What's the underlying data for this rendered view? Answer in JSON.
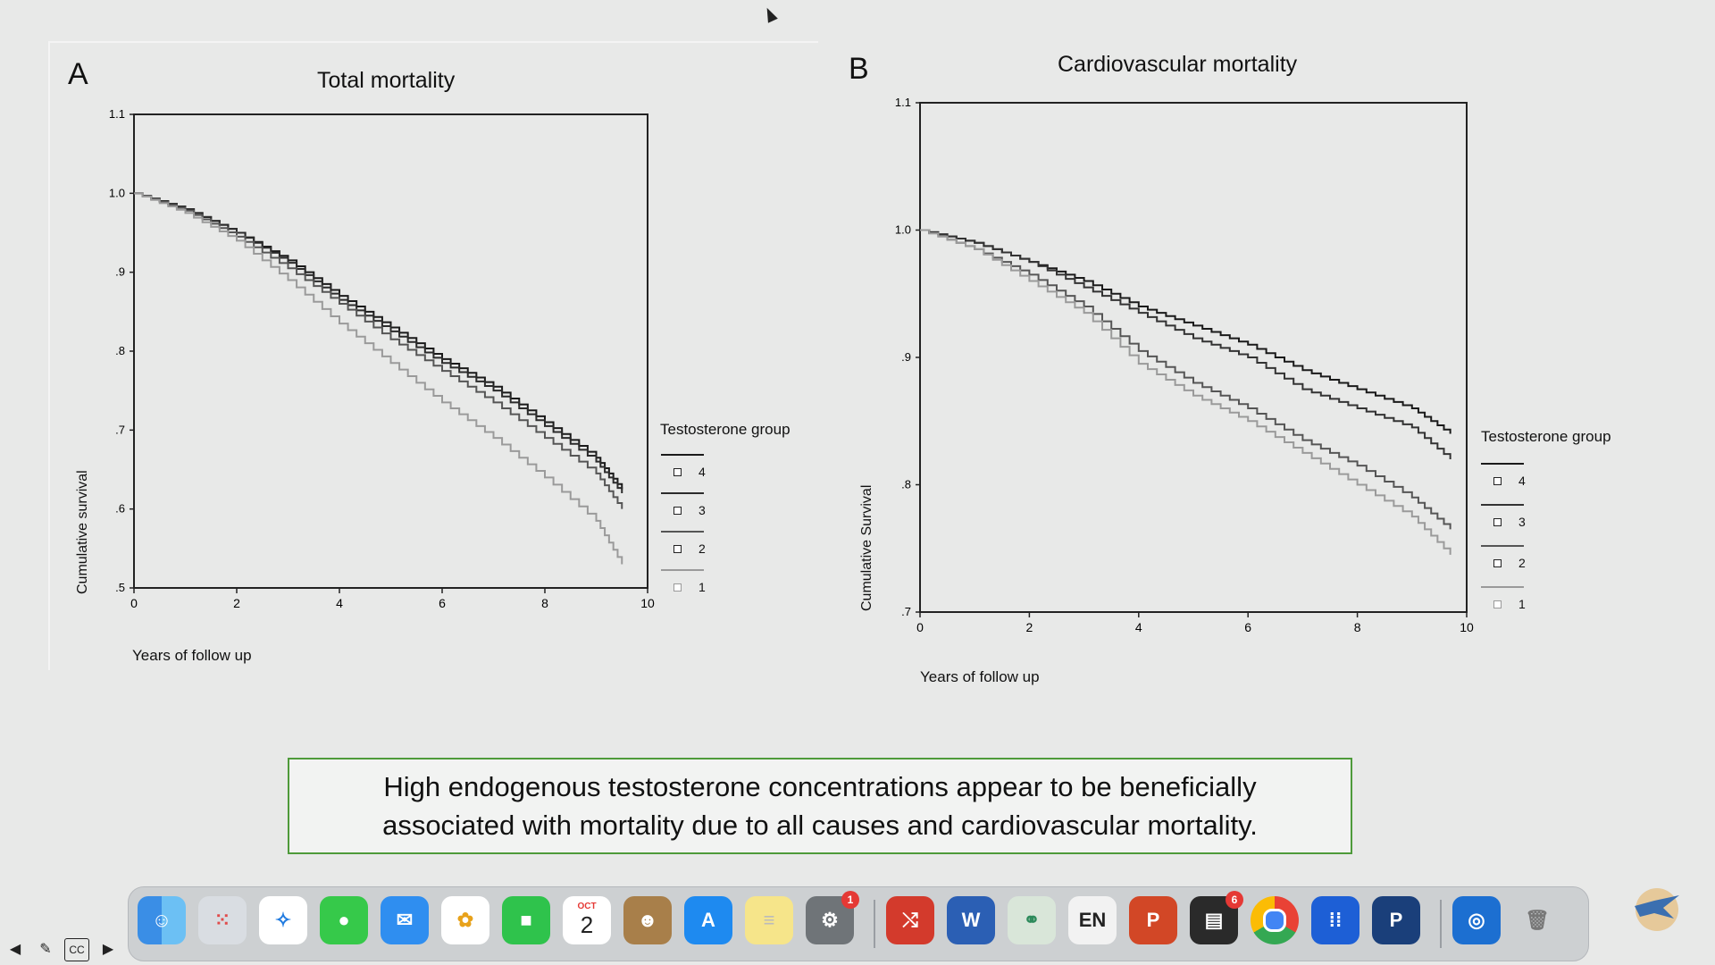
{
  "caption": {
    "line1": "High endogenous testosterone concentrations appear to be beneficially",
    "line2": "associated with mortality due to all causes and cardiovascular mortality."
  },
  "chart_data": [
    {
      "type": "line",
      "panel": "A",
      "title": "Total mortality",
      "xlabel": "Years of follow up",
      "ylabel": "Cumulative survival",
      "xlim": [
        0,
        10
      ],
      "ylim": [
        0.5,
        1.1
      ],
      "x_ticks": [
        "0",
        "2",
        "4",
        "6",
        "8",
        "10"
      ],
      "y_ticks": [
        "1.1",
        "1.0",
        ".9",
        ".8",
        ".7",
        ".6",
        ".5"
      ],
      "legend_title": "Testosterone group",
      "series": [
        {
          "name": "4",
          "color": "#1a1a1a",
          "x": [
            0,
            1,
            2,
            3,
            4,
            5,
            6,
            7,
            8,
            9,
            9.5
          ],
          "values": [
            1.0,
            0.98,
            0.95,
            0.915,
            0.87,
            0.83,
            0.79,
            0.755,
            0.71,
            0.665,
            0.625
          ]
        },
        {
          "name": "3",
          "color": "#2b2b2b",
          "x": [
            0,
            1,
            2,
            3,
            4,
            5,
            6,
            7,
            8,
            9,
            9.5
          ],
          "values": [
            1.0,
            0.98,
            0.95,
            0.912,
            0.865,
            0.825,
            0.785,
            0.75,
            0.705,
            0.66,
            0.62
          ]
        },
        {
          "name": "2",
          "color": "#555555",
          "x": [
            0,
            1,
            2,
            3,
            4,
            5,
            6,
            7,
            8,
            9,
            9.5
          ],
          "values": [
            1.0,
            0.978,
            0.945,
            0.905,
            0.86,
            0.815,
            0.775,
            0.735,
            0.69,
            0.645,
            0.6
          ]
        },
        {
          "name": "1",
          "color": "#9a9a9a",
          "x": [
            0,
            1,
            2,
            3,
            4,
            5,
            6,
            7,
            8,
            9,
            9.5
          ],
          "values": [
            1.0,
            0.975,
            0.94,
            0.89,
            0.835,
            0.785,
            0.735,
            0.69,
            0.64,
            0.585,
            0.53
          ]
        }
      ]
    },
    {
      "type": "line",
      "panel": "B",
      "title": "Cardiovascular mortality",
      "xlabel": "Years of follow up",
      "ylabel": "Cumulative Survival",
      "xlim": [
        0,
        10
      ],
      "ylim": [
        0.7,
        1.1
      ],
      "x_ticks": [
        "0",
        "2",
        "4",
        "6",
        "8",
        "10"
      ],
      "y_ticks": [
        "1.1",
        "1.0",
        ".9",
        ".8",
        ".7"
      ],
      "legend_title": "Testosterone group",
      "series": [
        {
          "name": "4",
          "color": "#1a1a1a",
          "x": [
            0,
            1,
            2,
            3,
            4,
            5,
            6,
            7,
            8,
            9,
            9.7
          ],
          "values": [
            1.0,
            0.99,
            0.975,
            0.96,
            0.94,
            0.925,
            0.91,
            0.89,
            0.875,
            0.86,
            0.84
          ]
        },
        {
          "name": "3",
          "color": "#333333",
          "x": [
            0,
            1,
            2,
            3,
            4,
            5,
            6,
            7,
            8,
            9,
            9.7
          ],
          "values": [
            1.0,
            0.99,
            0.975,
            0.955,
            0.935,
            0.915,
            0.9,
            0.875,
            0.86,
            0.845,
            0.82
          ]
        },
        {
          "name": "2",
          "color": "#555555",
          "x": [
            0,
            1,
            2,
            3,
            4,
            5,
            6,
            7,
            8,
            9,
            9.7
          ],
          "values": [
            1.0,
            0.985,
            0.965,
            0.94,
            0.905,
            0.88,
            0.86,
            0.835,
            0.815,
            0.79,
            0.765
          ]
        },
        {
          "name": "1",
          "color": "#9a9a9a",
          "x": [
            0,
            1,
            2,
            3,
            4,
            5,
            6,
            7,
            8,
            9,
            9.7
          ],
          "values": [
            1.0,
            0.985,
            0.96,
            0.935,
            0.895,
            0.87,
            0.85,
            0.825,
            0.8,
            0.775,
            0.745
          ]
        }
      ]
    }
  ],
  "dock": {
    "calendar_month": "OCT",
    "calendar_day": "2",
    "settings_badge": "1",
    "word_letter": "W",
    "keyboard_lang": "EN",
    "powerpoint_letter": "P",
    "app_badge": "6"
  },
  "colors": {
    "caption_border": "#4e9a3a",
    "background": "#e8e9e8"
  }
}
